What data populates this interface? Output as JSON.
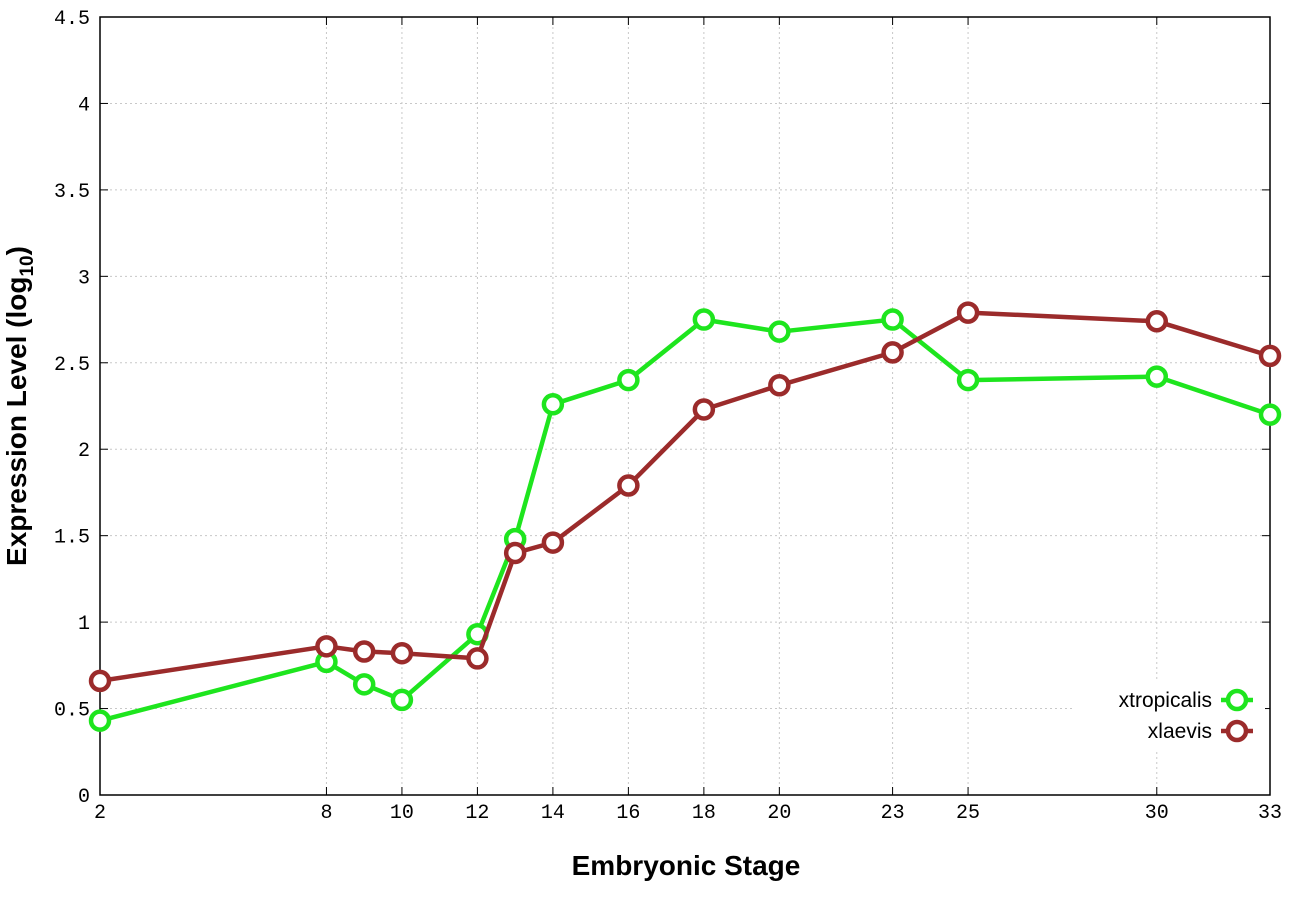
{
  "chart_data": {
    "type": "line",
    "xlabel": "Embryonic Stage",
    "ylabel_main": "Expression Level (log",
    "ylabel_sub": "10",
    "ylabel_end": ")",
    "x": [
      2,
      8,
      9,
      10,
      12,
      13,
      14,
      16,
      18,
      20,
      23,
      25,
      30,
      33
    ],
    "xlim": [
      2,
      33
    ],
    "ylim": [
      0,
      4.5
    ],
    "x_ticks": [
      2,
      8,
      10,
      12,
      14,
      16,
      18,
      20,
      23,
      25,
      30,
      33
    ],
    "x_tick_labels": [
      "2",
      "8",
      "10",
      "12",
      "14",
      "16",
      "18",
      "20",
      "23",
      "25",
      "30",
      "33"
    ],
    "y_ticks": [
      0,
      0.5,
      1,
      1.5,
      2,
      2.5,
      3,
      3.5,
      4,
      4.5
    ],
    "y_tick_labels": [
      "0",
      "0.5",
      "1",
      "1.5",
      "2",
      "2.5",
      "3",
      "3.5",
      "4",
      "4.5"
    ],
    "grid": true,
    "legend_position": "bottom-right",
    "series": [
      {
        "name": "xtropicalis",
        "color": "#1ee51e",
        "values": [
          0.43,
          0.77,
          0.64,
          0.55,
          0.93,
          1.48,
          2.26,
          2.4,
          2.75,
          2.68,
          2.75,
          2.4,
          2.42,
          2.2
        ]
      },
      {
        "name": "xlaevis",
        "color": "#9b2b2b",
        "values": [
          0.66,
          0.86,
          0.83,
          0.82,
          0.79,
          1.4,
          1.46,
          1.79,
          2.23,
          2.37,
          2.56,
          2.79,
          2.74,
          2.54
        ]
      }
    ]
  }
}
